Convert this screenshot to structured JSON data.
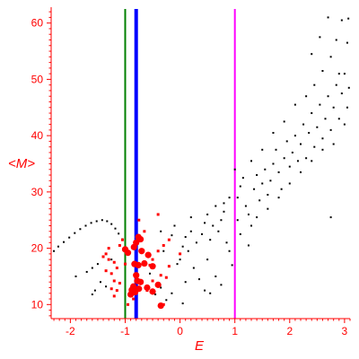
{
  "chart_data": {
    "type": "scatter",
    "title": "",
    "xlabel": "E",
    "ylabel": "<M>",
    "xlim": [
      -2.35,
      3.1
    ],
    "ylim": [
      7.5,
      62.5
    ],
    "grid": false,
    "x_ticks": [
      -2,
      -1,
      0,
      1,
      2,
      3
    ],
    "y_ticks": [
      10,
      20,
      30,
      40,
      50,
      60
    ],
    "x_tick_labels": [
      "-2",
      "-1",
      "0",
      "1",
      "2",
      "3"
    ],
    "y_tick_labels": [
      "10",
      "20",
      "30",
      "40",
      "50",
      "60"
    ],
    "axis_color": "#ff0000",
    "vertical_lines": [
      {
        "x": -1.0,
        "color": "#008000"
      },
      {
        "x": -0.8,
        "color": "#0000ff"
      },
      {
        "x": 1.0,
        "color": "#ff00ff"
      }
    ],
    "series": [
      {
        "color": "#000000",
        "marker_size": "small",
        "points": [
          [
            -2.3,
            19.5
          ],
          [
            -2.22,
            20.3
          ],
          [
            -2.12,
            21.1
          ],
          [
            -2.02,
            21.9
          ],
          [
            -1.92,
            22.7
          ],
          [
            -1.82,
            23.4
          ],
          [
            -1.72,
            24.0
          ],
          [
            -1.62,
            24.5
          ],
          [
            -1.52,
            24.8
          ],
          [
            -1.42,
            25.0
          ],
          [
            -1.33,
            24.8
          ],
          [
            -1.25,
            24.3
          ],
          [
            -1.18,
            23.5
          ],
          [
            -1.12,
            22.6
          ],
          [
            -1.05,
            21.6
          ],
          [
            -1.6,
            16.5
          ],
          [
            -1.5,
            17.2
          ],
          [
            -1.7,
            15.8
          ],
          [
            -1.9,
            15.0
          ],
          [
            -1.45,
            14.0
          ],
          [
            -1.55,
            12.5
          ],
          [
            -1.6,
            11.8
          ],
          [
            -1.35,
            13.2
          ],
          [
            -1.25,
            18.0
          ],
          [
            -0.55,
            15.5
          ],
          [
            -0.45,
            11.8
          ],
          [
            -0.35,
            13.0
          ],
          [
            -0.25,
            10.8
          ],
          [
            -0.15,
            12.0
          ],
          [
            0.05,
            10.2
          ],
          [
            -0.05,
            17.2
          ],
          [
            0.0,
            18.0
          ],
          [
            -0.3,
            19.5
          ],
          [
            -0.2,
            21.5
          ],
          [
            -0.35,
            23.0
          ],
          [
            -0.15,
            22.3
          ],
          [
            0.05,
            20.3
          ],
          [
            0.15,
            19.5
          ],
          [
            0.25,
            16.5
          ],
          [
            0.35,
            14.5
          ],
          [
            0.45,
            12.5
          ],
          [
            0.1,
            14.0
          ],
          [
            0.5,
            18.0
          ],
          [
            0.55,
            21.5
          ],
          [
            0.4,
            22.5
          ],
          [
            0.6,
            24.0
          ],
          [
            0.7,
            23.0
          ],
          [
            0.75,
            25.0
          ],
          [
            0.8,
            26.5
          ],
          [
            0.85,
            21.0
          ],
          [
            0.9,
            19.5
          ],
          [
            0.95,
            17.0
          ],
          [
            0.65,
            15.0
          ],
          [
            0.75,
            13.5
          ],
          [
            0.55,
            12.0
          ],
          [
            0.45,
            24.5
          ],
          [
            0.2,
            23.0
          ],
          [
            0.3,
            21.0
          ],
          [
            0.5,
            26.0
          ],
          [
            0.65,
            27.5
          ],
          [
            0.8,
            28.0
          ],
          [
            0.9,
            29.0
          ],
          [
            0.2,
            25.5
          ],
          [
            0.1,
            22.0
          ],
          [
            -0.1,
            24.0
          ],
          [
            1.05,
            29.0
          ],
          [
            1.1,
            31.0
          ],
          [
            1.15,
            32.5
          ],
          [
            1.2,
            27.5
          ],
          [
            1.25,
            26.0
          ],
          [
            1.3,
            24.0
          ],
          [
            1.35,
            30.5
          ],
          [
            1.4,
            33.0
          ],
          [
            1.45,
            28.5
          ],
          [
            1.5,
            31.5
          ],
          [
            1.55,
            34.0
          ],
          [
            1.6,
            29.5
          ],
          [
            1.65,
            32.0
          ],
          [
            1.7,
            35.0
          ],
          [
            1.75,
            37.5
          ],
          [
            1.8,
            33.5
          ],
          [
            1.85,
            30.5
          ],
          [
            1.9,
            36.0
          ],
          [
            1.95,
            39.0
          ],
          [
            2.0,
            34.5
          ],
          [
            2.05,
            37.0
          ],
          [
            2.1,
            40.0
          ],
          [
            2.15,
            35.5
          ],
          [
            2.2,
            38.5
          ],
          [
            2.25,
            42.0
          ],
          [
            2.3,
            36.0
          ],
          [
            2.35,
            40.5
          ],
          [
            2.4,
            44.0
          ],
          [
            2.45,
            38.0
          ],
          [
            2.5,
            41.5
          ],
          [
            2.55,
            45.5
          ],
          [
            2.6,
            39.5
          ],
          [
            2.65,
            43.0
          ],
          [
            2.7,
            47.0
          ],
          [
            2.75,
            41.0
          ],
          [
            2.8,
            45.0
          ],
          [
            2.85,
            49.0
          ],
          [
            2.9,
            43.0
          ],
          [
            2.95,
            47.5
          ],
          [
            3.0,
            51.0
          ],
          [
            3.05,
            45.0
          ],
          [
            3.08,
            48.5
          ],
          [
            1.1,
            22.5
          ],
          [
            1.25,
            20.5
          ],
          [
            1.4,
            25.5
          ],
          [
            1.6,
            27.0
          ],
          [
            1.8,
            29.0
          ],
          [
            2.0,
            31.5
          ],
          [
            2.2,
            33.5
          ],
          [
            2.4,
            35.5
          ],
          [
            2.6,
            37.5
          ],
          [
            2.8,
            38.5
          ],
          [
            3.0,
            42.0
          ],
          [
            1.3,
            35.5
          ],
          [
            1.5,
            37.5
          ],
          [
            1.7,
            40.5
          ],
          [
            1.9,
            42.5
          ],
          [
            2.1,
            45.5
          ],
          [
            2.3,
            47.0
          ],
          [
            2.45,
            49.0
          ],
          [
            2.6,
            51.5
          ],
          [
            2.75,
            54.0
          ],
          [
            2.85,
            57.0
          ],
          [
            2.95,
            60.5
          ],
          [
            2.4,
            54.5
          ],
          [
            2.55,
            57.5
          ],
          [
            2.7,
            61.0
          ],
          [
            2.9,
            51.0
          ],
          [
            3.05,
            56.5
          ],
          [
            3.07,
            60.8
          ],
          [
            2.75,
            25.5
          ],
          [
            1.0,
            34.0
          ],
          [
            1.05,
            25.0
          ]
        ]
      },
      {
        "color": "#ff0000",
        "marker_size": "small",
        "points": [
          [
            -1.35,
            19.0
          ],
          [
            -1.3,
            18.0
          ],
          [
            -1.2,
            17.5
          ],
          [
            -1.15,
            16.5
          ],
          [
            -1.25,
            15.5
          ],
          [
            -1.1,
            20.5
          ],
          [
            -1.05,
            21.5
          ],
          [
            -1.0,
            17.2
          ],
          [
            -1.3,
            20.0
          ],
          [
            -1.4,
            18.5
          ],
          [
            -1.2,
            14.2
          ],
          [
            -1.35,
            16.0
          ],
          [
            -1.15,
            12.5
          ],
          [
            -1.2,
            11.5
          ],
          [
            -1.1,
            13.8
          ],
          [
            -1.25,
            12.8
          ],
          [
            -0.7,
            13.8
          ],
          [
            -0.6,
            12.5
          ],
          [
            -0.5,
            14.2
          ],
          [
            -0.35,
            15.2
          ],
          [
            -0.25,
            14.8
          ],
          [
            -0.6,
            19.0
          ],
          [
            -0.5,
            18.0
          ],
          [
            -0.4,
            19.5
          ],
          [
            -0.3,
            20.5
          ],
          [
            -0.2,
            21.5
          ],
          [
            -0.4,
            26.0
          ],
          [
            -0.55,
            17.0
          ],
          [
            -0.95,
            10.0
          ],
          [
            -0.85,
            11.0
          ],
          [
            -0.3,
            10.0
          ],
          [
            -0.75,
            25.0
          ],
          [
            -0.65,
            23.0
          ],
          [
            -0.2,
            16.8
          ],
          [
            0.0,
            19.0
          ]
        ]
      },
      {
        "color": "#ff0000",
        "marker_size": "large",
        "points": [
          [
            -0.85,
            13.2
          ],
          [
            -0.82,
            12.2
          ],
          [
            -0.78,
            14.2
          ],
          [
            -0.75,
            12.8
          ],
          [
            -0.88,
            12.6
          ],
          [
            -0.8,
            15.2
          ],
          [
            -0.72,
            14.0
          ],
          [
            -0.6,
            13.0
          ],
          [
            -0.5,
            12.3
          ],
          [
            -0.4,
            13.5
          ],
          [
            -0.83,
            17.2
          ],
          [
            -0.76,
            17.0
          ],
          [
            -0.65,
            17.3
          ],
          [
            -0.5,
            16.8
          ],
          [
            -0.8,
            21.0
          ],
          [
            -0.76,
            22.0
          ],
          [
            -0.72,
            21.6
          ],
          [
            -0.84,
            20.2
          ],
          [
            -0.7,
            19.5
          ],
          [
            -0.58,
            18.8
          ],
          [
            -0.9,
            11.8
          ],
          [
            -0.95,
            19.2
          ],
          [
            -1.0,
            19.8
          ],
          [
            -0.35,
            9.8
          ]
        ]
      }
    ]
  }
}
